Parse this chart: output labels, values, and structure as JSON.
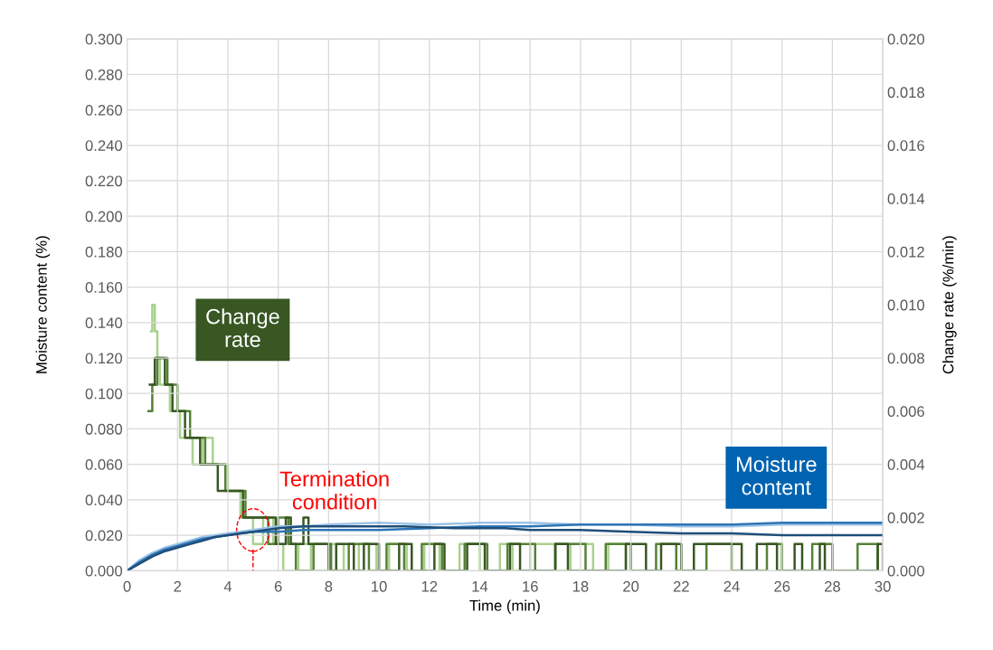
{
  "chart_data": {
    "type": "line",
    "xlabel": "Time (min)",
    "ylabel": "Moisture content (%)",
    "y2label": "Change rate (%/min)",
    "xlim": [
      0,
      30
    ],
    "xticks": [
      0,
      2,
      4,
      6,
      8,
      10,
      12,
      14,
      16,
      18,
      20,
      22,
      24,
      26,
      28,
      30
    ],
    "ylim": [
      0,
      0.3
    ],
    "yticks": [
      {
        "value": 0,
        "label": "0.000"
      },
      {
        "value": 0.02,
        "label": "0.020"
      },
      {
        "value": 0.04,
        "label": "0.040"
      },
      {
        "value": 0.06,
        "label": "0.060"
      },
      {
        "value": 0.08,
        "label": "0.080"
      },
      {
        "value": 0.1,
        "label": "0.100"
      },
      {
        "value": 0.12,
        "label": "0.120"
      },
      {
        "value": 0.14,
        "label": "0.140"
      },
      {
        "value": 0.16,
        "label": "0.160"
      },
      {
        "value": 0.18,
        "label": "0.180"
      },
      {
        "value": 0.2,
        "label": "0.200"
      },
      {
        "value": 0.22,
        "label": "0.220"
      },
      {
        "value": 0.24,
        "label": "0.240"
      },
      {
        "value": 0.26,
        "label": "0.260"
      },
      {
        "value": 0.28,
        "label": "0.280"
      },
      {
        "value": 0.3,
        "label": "0.300"
      }
    ],
    "y2lim": [
      0,
      0.02
    ],
    "y2ticks": [
      {
        "value": 0,
        "label": "0.000"
      },
      {
        "value": 0.002,
        "label": "0.002"
      },
      {
        "value": 0.004,
        "label": "0.004"
      },
      {
        "value": 0.006,
        "label": "0.006"
      },
      {
        "value": 0.008,
        "label": "0.008"
      },
      {
        "value": 0.01,
        "label": "0.010"
      },
      {
        "value": 0.012,
        "label": "0.012"
      },
      {
        "value": 0.014,
        "label": "0.014"
      },
      {
        "value": 0.016,
        "label": "0.016"
      },
      {
        "value": 0.018,
        "label": "0.018"
      },
      {
        "value": 0.02,
        "label": "0.020"
      }
    ],
    "grid": true,
    "legend": false,
    "marker": "none",
    "line_style": "solid",
    "series": [
      {
        "type": "step",
        "axis": "y2",
        "color": "#a9d18e",
        "x": [
          0.95,
          1.0,
          1.1,
          1.2,
          1.3,
          1.7,
          2.1,
          2.6,
          3.0,
          3.4,
          4.0,
          4.5,
          5.0,
          5.4,
          5.8,
          6.2,
          6.8,
          7.3,
          8.0,
          8.6,
          9.2,
          9.9,
          10.4,
          11.1,
          11.8,
          12.4,
          13.2,
          14.0,
          14.8,
          15.3,
          16.0,
          17.0,
          17.6,
          18.5,
          19.1,
          19.8
        ],
        "values": [
          0.009,
          0.01,
          0.009,
          0.008,
          0.007,
          0.006,
          0.005,
          0.004,
          0.005,
          0.004,
          0.003,
          0.002,
          0.001,
          0.002,
          0.001,
          0.0,
          0.001,
          0.0,
          0.001,
          0.0,
          0.001,
          0.0,
          0.001,
          0.0,
          0.001,
          0.0,
          0.001,
          0.0,
          0.001,
          0.0,
          0.001,
          0.0,
          0.001,
          0.0,
          0.001,
          0.0
        ]
      },
      {
        "type": "step",
        "axis": "y2",
        "color": "#548235",
        "x": [
          0.85,
          1.0,
          1.2,
          1.6,
          2.0,
          2.5,
          3.1,
          3.9,
          4.7,
          5.6,
          6.0,
          6.4,
          6.7,
          7.4,
          8.1,
          8.8,
          9.6,
          10.3,
          11.0,
          11.7,
          12.5,
          13.4,
          14.3,
          15.1,
          16.2,
          17.0,
          18.2,
          19.0,
          20.0,
          21.0,
          21.8,
          23.0,
          24.0,
          25.4,
          26.0,
          27.2,
          28.0,
          29.0,
          29.8
        ],
        "values": [
          0.006,
          0.007,
          0.008,
          0.007,
          0.006,
          0.005,
          0.004,
          0.003,
          0.002,
          0.001,
          0.002,
          0.001,
          0.0,
          0.001,
          0.0,
          0.001,
          0.0,
          0.001,
          0.0,
          0.001,
          0.0,
          0.001,
          0.0,
          0.001,
          0.0,
          0.001,
          0.0,
          0.001,
          0.0,
          0.001,
          0.0,
          0.001,
          0.0,
          0.001,
          0.0,
          0.001,
          0.0,
          0.001,
          0.0
        ]
      },
      {
        "type": "step",
        "axis": "y2",
        "color": "#385723",
        "x": [
          0.9,
          1.1,
          1.5,
          1.8,
          2.3,
          2.9,
          3.6,
          4.6,
          5.9,
          6.3,
          6.5,
          7.0,
          7.2,
          8.0,
          8.3,
          9.0,
          9.4,
          10.0,
          10.8,
          11.3,
          12.2,
          12.6,
          13.5,
          14.2,
          15.2,
          15.6,
          17.0,
          17.5,
          19.8,
          20.6,
          21.2,
          22.0,
          22.5,
          24.4,
          25.0,
          25.8,
          26.5,
          26.8,
          27.5,
          27.7,
          29.8,
          30.0
        ],
        "values": [
          0.007,
          0.008,
          0.007,
          0.006,
          0.005,
          0.004,
          0.003,
          0.002,
          0.001,
          0.002,
          0.001,
          0.002,
          0.001,
          0.0,
          0.001,
          0.0,
          0.001,
          0.0,
          0.001,
          0.0,
          0.001,
          0.0,
          0.001,
          0.0,
          0.001,
          0.0,
          0.001,
          0.0,
          0.001,
          0.0,
          0.001,
          0.0,
          0.001,
          0.0,
          0.001,
          0.0,
          0.001,
          0.0,
          0.001,
          0.0,
          0.001,
          0.0
        ]
      },
      {
        "type": "line",
        "color": "#9dc3e6",
        "x": [
          0,
          0.5,
          1,
          1.5,
          2,
          2.5,
          3,
          4,
          5,
          6,
          7,
          8,
          10,
          12,
          14,
          16,
          18,
          20,
          22,
          24,
          26,
          28,
          30
        ],
        "values": [
          0,
          0.006,
          0.01,
          0.013,
          0.015,
          0.017,
          0.019,
          0.021,
          0.023,
          0.025,
          0.025,
          0.026,
          0.027,
          0.026,
          0.027,
          0.027,
          0.026,
          0.026,
          0.025,
          0.025,
          0.026,
          0.026,
          0.026
        ]
      },
      {
        "type": "line",
        "color": "#2e75b6",
        "x": [
          0,
          0.5,
          1,
          1.5,
          2,
          2.5,
          3,
          3.5,
          4,
          5,
          6,
          7,
          8,
          10,
          12,
          14,
          16,
          18,
          20,
          22,
          24,
          26,
          28,
          30
        ],
        "values": [
          0,
          0.005,
          0.009,
          0.012,
          0.014,
          0.016,
          0.018,
          0.019,
          0.02,
          0.022,
          0.022,
          0.023,
          0.023,
          0.023,
          0.024,
          0.025,
          0.025,
          0.026,
          0.026,
          0.026,
          0.026,
          0.027,
          0.027,
          0.027
        ]
      },
      {
        "type": "line",
        "color": "#1f4e79",
        "x": [
          0,
          0.5,
          1,
          1.5,
          2,
          2.5,
          3,
          3.5,
          4,
          4.5,
          5,
          5.5,
          6,
          7,
          9,
          11,
          13,
          15,
          16,
          18,
          20,
          22,
          24,
          26,
          28,
          30
        ],
        "values": [
          0,
          0.004,
          0.008,
          0.011,
          0.013,
          0.015,
          0.017,
          0.019,
          0.02,
          0.021,
          0.022,
          0.023,
          0.024,
          0.025,
          0.025,
          0.025,
          0.024,
          0.024,
          0.023,
          0.023,
          0.022,
          0.021,
          0.021,
          0.02,
          0.02,
          0.02
        ]
      }
    ],
    "annotations": [
      "Change rate",
      "Moisture content",
      {
        "text": "Termination condition",
        "x": 5,
        "y": 0.023
      }
    ]
  }
}
